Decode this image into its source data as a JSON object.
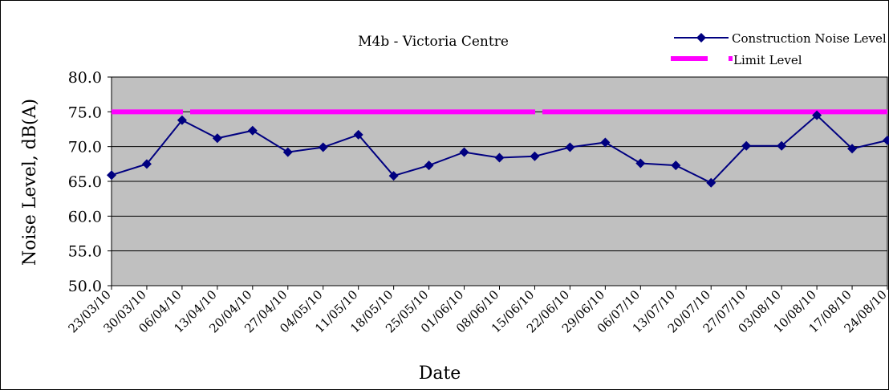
{
  "chart_data": {
    "type": "line",
    "title": "M4b - Victoria Centre",
    "xlabel": "Date",
    "ylabel": "Noise Level, dB(A)",
    "ylim": [
      50,
      80
    ],
    "yticks": [
      "50.0",
      "55.0",
      "60.0",
      "65.0",
      "70.0",
      "75.0",
      "80.0"
    ],
    "categories": [
      "23/03/10",
      "30/03/10",
      "06/04/10",
      "13/04/10",
      "20/04/10",
      "27/04/10",
      "04/05/10",
      "11/05/10",
      "18/05/10",
      "25/05/10",
      "01/06/10",
      "08/06/10",
      "15/06/10",
      "22/06/10",
      "29/06/10",
      "06/07/10",
      "13/07/10",
      "20/07/10",
      "27/07/10",
      "03/08/10",
      "10/08/10",
      "17/08/10",
      "24/08/10"
    ],
    "x": [
      "2010-03-23",
      "2010-03-29",
      "2010-04-08",
      "2010-04-12",
      "2010-04-19",
      "2010-04-23",
      "2010-04-29",
      "2010-05-05",
      "2010-05-11",
      "2010-05-17",
      "2010-05-23",
      "2010-05-29",
      "2010-06-04",
      "2010-06-10",
      "2010-06-15",
      "2010-06-21",
      "2010-06-27",
      "2010-07-03",
      "2010-07-09",
      "2010-07-15",
      "2010-07-21",
      "2010-07-27",
      "2010-08-02",
      "2010-08-08",
      "2010-08-14",
      "2010-08-20",
      "2010-08-26"
    ],
    "grid": true,
    "legend_position": "top-right",
    "series": [
      {
        "name": "Construction Noise Level",
        "color": "#000080",
        "marker": "diamond",
        "values": [
          65.9,
          67.5,
          73.8,
          71.2,
          72.3,
          69.2,
          69.9,
          71.7,
          65.8,
          67.3,
          69.2,
          68.4,
          68.6,
          69.9,
          70.6,
          67.6,
          67.3,
          64.8,
          70.1,
          70.1,
          74.5,
          69.7,
          70.9
        ]
      },
      {
        "name": "Limit Level",
        "color": "#FF00FF",
        "marker": "none",
        "values": [
          75,
          75,
          75,
          75,
          75,
          75,
          75,
          75,
          75,
          75,
          75,
          75,
          75,
          75,
          75,
          75,
          75,
          75,
          75,
          75,
          75,
          75,
          75
        ]
      }
    ]
  }
}
